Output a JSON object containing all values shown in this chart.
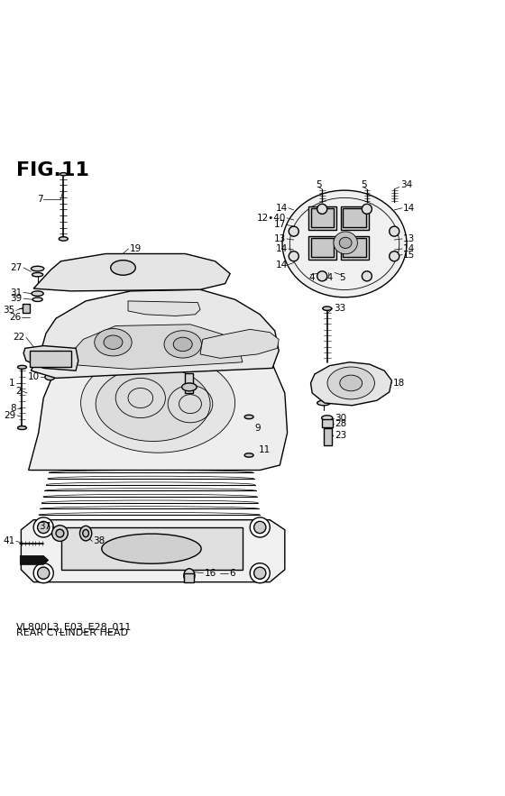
{
  "title": "FIG.11",
  "subtitle1": "VL800L3_E03_E28_011",
  "subtitle2": "REAR CYLINDER HEAD",
  "bg_color": "#ffffff",
  "line_color": "#000000",
  "title_fontsize": 16,
  "label_fontsize": 7.5,
  "subtitle_fontsize": 8
}
